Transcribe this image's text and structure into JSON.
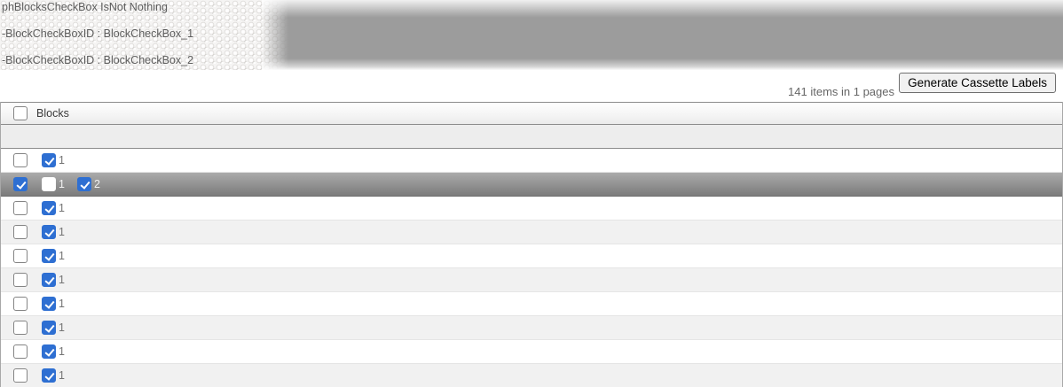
{
  "debug_panel": {
    "lines": [
      "phBlocksCheckBox IsNot Nothing",
      "-BlockCheckBoxID : BlockCheckBox_1",
      "-BlockCheckBoxID : BlockCheckBox_2"
    ]
  },
  "toolbar": {
    "items_summary": "141 items in 1 pages",
    "generate_button_label": "Generate Cassette Labels"
  },
  "table": {
    "header": {
      "column_label": "Blocks"
    },
    "rows": [
      {
        "selected": false,
        "row_checked": false,
        "blocks": [
          {
            "label": "1",
            "checked": true
          }
        ]
      },
      {
        "selected": true,
        "row_checked": true,
        "blocks": [
          {
            "label": "1",
            "checked": false
          },
          {
            "label": "2",
            "checked": true
          }
        ]
      },
      {
        "selected": false,
        "row_checked": false,
        "blocks": [
          {
            "label": "1",
            "checked": true
          }
        ]
      },
      {
        "selected": false,
        "row_checked": false,
        "blocks": [
          {
            "label": "1",
            "checked": true
          }
        ]
      },
      {
        "selected": false,
        "row_checked": false,
        "blocks": [
          {
            "label": "1",
            "checked": true
          }
        ]
      },
      {
        "selected": false,
        "row_checked": false,
        "blocks": [
          {
            "label": "1",
            "checked": true
          }
        ]
      },
      {
        "selected": false,
        "row_checked": false,
        "blocks": [
          {
            "label": "1",
            "checked": true
          }
        ]
      },
      {
        "selected": false,
        "row_checked": false,
        "blocks": [
          {
            "label": "1",
            "checked": true
          }
        ]
      },
      {
        "selected": false,
        "row_checked": false,
        "blocks": [
          {
            "label": "1",
            "checked": true
          }
        ]
      },
      {
        "selected": false,
        "row_checked": false,
        "blocks": [
          {
            "label": "1",
            "checked": true
          }
        ]
      }
    ]
  },
  "colors": {
    "accent_blue": "#2e6fd2",
    "selected_row_gray": "#909090",
    "panel_gray": "#9c9c9c"
  }
}
